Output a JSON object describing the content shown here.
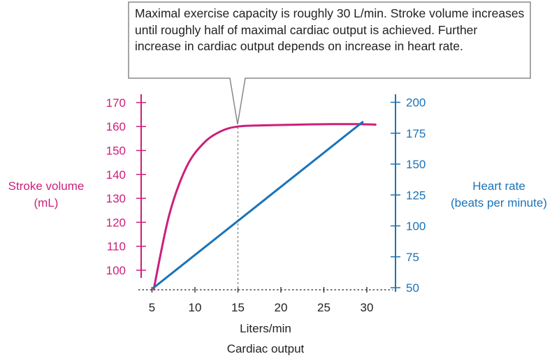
{
  "callout": "Maximal exercise capacity is roughly 30 L/min. Stroke volume increases until roughly half of maximal cardiac output is achieved. Further increase in cardiac output depends on increase in heart rate.",
  "colors": {
    "stroke_volume": "#cc1f7a",
    "heart_rate": "#1a73b8",
    "text": "#222222"
  },
  "chart_data": {
    "type": "line",
    "x_label_top": "Liters/min",
    "x_label_bottom": "Cardiac output",
    "xlim": [
      5,
      30
    ],
    "x_ticks": [
      5,
      10,
      15,
      20,
      25,
      30
    ],
    "y_left": {
      "label_line1": "Stroke volume",
      "label_line2": "(mL)",
      "ticks": [
        100,
        110,
        120,
        130,
        140,
        150,
        160,
        170
      ]
    },
    "y_right": {
      "label_line1": "Heart rate",
      "label_line2": "(beats per minute)",
      "ticks": [
        50,
        75,
        100,
        125,
        150,
        175,
        200
      ]
    },
    "reference_line_x": 15,
    "series": [
      {
        "name": "Stroke volume",
        "axis": "left",
        "points": [
          [
            5.2,
            92
          ],
          [
            7,
            123
          ],
          [
            9,
            143
          ],
          [
            11,
            153
          ],
          [
            13,
            158
          ],
          [
            15,
            160
          ],
          [
            18,
            160.5
          ],
          [
            22,
            160.8
          ],
          [
            26,
            161
          ],
          [
            29,
            161
          ],
          [
            31,
            160.8
          ]
        ]
      },
      {
        "name": "Heart rate",
        "axis": "right",
        "points": [
          [
            5.2,
            50
          ],
          [
            29.5,
            184
          ]
        ]
      }
    ]
  }
}
